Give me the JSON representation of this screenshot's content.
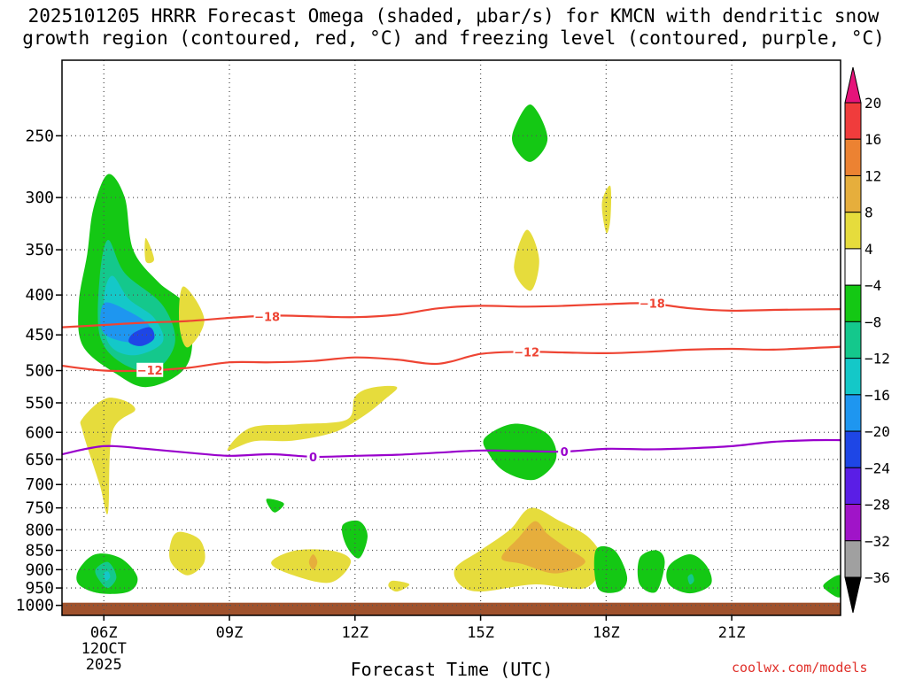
{
  "title_line1": "2025101205 HRRR Forecast Omega (shaded, μbar/s) for KMCN with dendritic snow",
  "title_line2": "growth region (contoured, red, °C) and freezing level (contoured, purple, °C)",
  "watermark": "coolwx.com/models",
  "colors": {
    "frame": "#000000",
    "grid": "#555555",
    "ground": "#a0522d",
    "dgz_line": "#ee4433",
    "freezing_line": "#9900cc"
  },
  "chart_data": {
    "type": "contour_shaded_time_height",
    "title": "2025101205 HRRR Forecast Omega (shaded, μbar/s) for KMCN with dendritic snow growth region (contoured, red, °C) and freezing level (contoured, purple, °C)",
    "xlabel": "Forecast Time (UTC)",
    "ylabel": "",
    "x_range_hours": [
      5.0,
      23.6
    ],
    "x_ticks": [
      {
        "hour": 6,
        "label": "06Z",
        "sublabel": [
          "12OCT",
          "2025"
        ]
      },
      {
        "hour": 9,
        "label": "09Z"
      },
      {
        "hour": 12,
        "label": "12Z"
      },
      {
        "hour": 15,
        "label": "15Z"
      },
      {
        "hour": 18,
        "label": "18Z"
      },
      {
        "hour": 21,
        "label": "21Z"
      }
    ],
    "y_axis": "pressure (mb), log scale, inverted",
    "y_range_mb": [
      1030,
      200
    ],
    "y_ticks": [
      250,
      300,
      350,
      400,
      450,
      500,
      550,
      600,
      650,
      700,
      750,
      800,
      850,
      900,
      950,
      1000
    ],
    "colorbar": {
      "units": "μbar/s",
      "labels": [
        "20",
        "16",
        "12",
        "8",
        "4",
        "−4",
        "−8",
        "−12",
        "−16",
        "−20",
        "−24",
        "−28",
        "−32",
        "−36"
      ],
      "bands": [
        {
          "range": [
            16,
            20
          ],
          "color": "#f03c3c"
        },
        {
          "range": [
            12,
            16
          ],
          "color": "#ec8232"
        },
        {
          "range": [
            8,
            12
          ],
          "color": "#e6ae3c"
        },
        {
          "range": [
            4,
            8
          ],
          "color": "#e6dc3c"
        },
        {
          "range": [
            -4,
            4
          ],
          "color": "#ffffff"
        },
        {
          "range": [
            -8,
            -4
          ],
          "color": "#14c814"
        },
        {
          "range": [
            -12,
            -8
          ],
          "color": "#14c88c"
        },
        {
          "range": [
            -16,
            -12
          ],
          "color": "#14c8c8"
        },
        {
          "range": [
            -20,
            -16
          ],
          "color": "#1e96f0"
        },
        {
          "range": [
            -24,
            -20
          ],
          "color": "#1e46e6"
        },
        {
          "range": [
            -28,
            -24
          ],
          "color": "#5a1ee6"
        },
        {
          "range": [
            -32,
            -28
          ],
          "color": "#a014c8"
        },
        {
          "range": [
            -36,
            -32
          ],
          "color": "#a0a0a0"
        }
      ],
      "over_color": "#e6147a",
      "under_color": "#000000"
    },
    "contours": [
      {
        "name": "dgz_-18C",
        "label": "−18",
        "color": "#ee4433",
        "points": [
          [
            5,
            440
          ],
          [
            6,
            437
          ],
          [
            7,
            434
          ],
          [
            8,
            432
          ],
          [
            9,
            428
          ],
          [
            10,
            425
          ],
          [
            11,
            426
          ],
          [
            12,
            427
          ],
          [
            13,
            424
          ],
          [
            14,
            416
          ],
          [
            15,
            413
          ],
          [
            16,
            414
          ],
          [
            17,
            413
          ],
          [
            18,
            411
          ],
          [
            19,
            410
          ],
          [
            20,
            416
          ],
          [
            21,
            419
          ],
          [
            22,
            418
          ],
          [
            23.6,
            417
          ]
        ],
        "label_at": [
          [
            9.9,
            426
          ],
          [
            19.1,
            410
          ]
        ]
      },
      {
        "name": "dgz_-12C",
        "label": "−12",
        "color": "#ee4433",
        "points": [
          [
            5,
            493
          ],
          [
            6,
            500
          ],
          [
            7,
            500
          ],
          [
            8,
            496
          ],
          [
            9,
            488
          ],
          [
            10,
            488
          ],
          [
            11,
            486
          ],
          [
            12,
            481
          ],
          [
            13,
            484
          ],
          [
            14,
            490
          ],
          [
            15,
            476
          ],
          [
            16,
            473
          ],
          [
            17,
            474
          ],
          [
            18,
            475
          ],
          [
            19,
            473
          ],
          [
            20,
            470
          ],
          [
            21,
            469
          ],
          [
            22,
            470
          ],
          [
            23.6,
            466
          ]
        ],
        "label_at": [
          [
            7.1,
            499
          ],
          [
            16.1,
            473
          ]
        ]
      },
      {
        "name": "freezing_0C",
        "label": "0",
        "color": "#9900cc",
        "points": [
          [
            5,
            640
          ],
          [
            6,
            625
          ],
          [
            7,
            630
          ],
          [
            8,
            637
          ],
          [
            9,
            643
          ],
          [
            10,
            640
          ],
          [
            11,
            645
          ],
          [
            12,
            643
          ],
          [
            13,
            641
          ],
          [
            14,
            637
          ],
          [
            15,
            633
          ],
          [
            16,
            634
          ],
          [
            17,
            635
          ],
          [
            18,
            630
          ],
          [
            19,
            631
          ],
          [
            20,
            629
          ],
          [
            21,
            625
          ],
          [
            22,
            617
          ],
          [
            23,
            614
          ],
          [
            23.6,
            614
          ]
        ],
        "label_at": [
          [
            11.0,
            645
          ],
          [
            17.0,
            635
          ]
        ]
      }
    ],
    "shaded_regions": [
      {
        "level": -6,
        "outline": [
          [
            5.75,
            310
          ],
          [
            6.1,
            280
          ],
          [
            6.5,
            300
          ],
          [
            6.7,
            350
          ],
          [
            7.3,
            385
          ],
          [
            8.0,
            415
          ],
          [
            8.1,
            470
          ],
          [
            7.8,
            505
          ],
          [
            7.0,
            525
          ],
          [
            6.3,
            505
          ],
          [
            5.5,
            465
          ],
          [
            5.4,
            410
          ],
          [
            5.6,
            355
          ]
        ]
      },
      {
        "level": -10,
        "outline": [
          [
            5.9,
            380
          ],
          [
            6.1,
            340
          ],
          [
            6.5,
            375
          ],
          [
            7.4,
            412
          ],
          [
            7.7,
            460
          ],
          [
            7.2,
            500
          ],
          [
            6.4,
            488
          ],
          [
            5.9,
            450
          ]
        ]
      },
      {
        "level": -14,
        "outline": [
          [
            6.0,
            405
          ],
          [
            6.2,
            378
          ],
          [
            6.6,
            405
          ],
          [
            7.2,
            428
          ],
          [
            7.4,
            460
          ],
          [
            6.7,
            478
          ],
          [
            6.1,
            460
          ]
        ]
      },
      {
        "level": -18,
        "outline": [
          [
            6.0,
            410
          ],
          [
            6.6,
            420
          ],
          [
            7.1,
            440
          ],
          [
            6.8,
            460
          ],
          [
            6.0,
            448
          ]
        ]
      },
      {
        "level": -22,
        "outline": [
          [
            6.7,
            448
          ],
          [
            7.1,
            440
          ],
          [
            7.2,
            455
          ],
          [
            6.9,
            465
          ],
          [
            6.6,
            460
          ]
        ]
      },
      {
        "level": 5,
        "outline": [
          [
            7.0,
            338
          ],
          [
            7.2,
            360
          ],
          [
            7.0,
            362
          ]
        ]
      },
      {
        "level": 5,
        "outline": [
          [
            7.9,
            390
          ],
          [
            8.4,
            430
          ],
          [
            8.0,
            467
          ],
          [
            7.8,
            435
          ]
        ]
      },
      {
        "level": 5,
        "outline": [
          [
            5.5,
            575
          ],
          [
            6.1,
            542
          ],
          [
            6.75,
            560
          ],
          [
            6.2,
            600
          ],
          [
            6.1,
            760
          ],
          [
            5.9,
            700
          ],
          [
            5.5,
            600
          ]
        ]
      },
      {
        "level": 5,
        "outline": [
          [
            8.95,
            633
          ],
          [
            9.5,
            592
          ],
          [
            10.6,
            586
          ],
          [
            11.8,
            578
          ],
          [
            12.0,
            540
          ],
          [
            12.4,
            526
          ],
          [
            13.0,
            525
          ],
          [
            12.7,
            545
          ],
          [
            12.2,
            572
          ],
          [
            11.5,
            600
          ],
          [
            10.5,
            615
          ],
          [
            9.6,
            616
          ]
        ]
      },
      {
        "level": 5,
        "outline": [
          [
            7.8,
            805
          ],
          [
            8.3,
            825
          ],
          [
            8.4,
            880
          ],
          [
            8.0,
            915
          ],
          [
            7.6,
            880
          ],
          [
            7.6,
            830
          ]
        ]
      },
      {
        "level": 5,
        "outline": [
          [
            10.0,
            880
          ],
          [
            10.6,
            850
          ],
          [
            11.5,
            852
          ],
          [
            11.9,
            880
          ],
          [
            11.4,
            935
          ],
          [
            10.4,
            910
          ]
        ]
      },
      {
        "level": 9,
        "outline": [
          [
            10.9,
            880
          ],
          [
            11.0,
            860
          ],
          [
            11.1,
            880
          ],
          [
            11.0,
            900
          ]
        ]
      },
      {
        "level": 5,
        "outline": [
          [
            12.9,
            930
          ],
          [
            13.3,
            940
          ],
          [
            13.0,
            960
          ],
          [
            12.8,
            945
          ]
        ]
      },
      {
        "level": 5,
        "outline": [
          [
            14.4,
            895
          ],
          [
            15.0,
            850
          ],
          [
            15.7,
            800
          ],
          [
            16.2,
            750
          ],
          [
            16.9,
            780
          ],
          [
            17.6,
            820
          ],
          [
            17.9,
            880
          ],
          [
            17.5,
            950
          ],
          [
            16.3,
            940
          ],
          [
            15.0,
            960
          ],
          [
            14.5,
            940
          ]
        ]
      },
      {
        "level": 9,
        "outline": [
          [
            15.5,
            870
          ],
          [
            15.9,
            820
          ],
          [
            16.3,
            780
          ],
          [
            16.6,
            810
          ],
          [
            17.0,
            840
          ],
          [
            17.5,
            880
          ],
          [
            16.8,
            910
          ],
          [
            16.0,
            885
          ]
        ]
      },
      {
        "level": 5,
        "outline": [
          [
            15.8,
            370
          ],
          [
            16.1,
            330
          ],
          [
            16.4,
            360
          ],
          [
            16.2,
            395
          ]
        ]
      },
      {
        "level": 5,
        "outline": [
          [
            17.9,
            305
          ],
          [
            18.1,
            290
          ],
          [
            18.1,
            320
          ],
          [
            18.0,
            333
          ]
        ]
      },
      {
        "level": -6,
        "outline": [
          [
            15.8,
            245
          ],
          [
            16.2,
            228
          ],
          [
            16.6,
            252
          ],
          [
            16.2,
            270
          ],
          [
            15.8,
            258
          ]
        ]
      },
      {
        "level": -6,
        "outline": [
          [
            15.1,
            610
          ],
          [
            15.8,
            585
          ],
          [
            16.6,
            603
          ],
          [
            16.8,
            650
          ],
          [
            16.3,
            690
          ],
          [
            15.6,
            675
          ],
          [
            15.2,
            640
          ]
        ]
      },
      {
        "level": -6,
        "outline": [
          [
            9.9,
            730
          ],
          [
            10.3,
            740
          ],
          [
            10.1,
            760
          ],
          [
            9.95,
            748
          ]
        ]
      },
      {
        "level": -6,
        "outline": [
          [
            11.7,
            790
          ],
          [
            12.1,
            780
          ],
          [
            12.3,
            815
          ],
          [
            12.1,
            870
          ],
          [
            11.8,
            840
          ]
        ]
      },
      {
        "level": -6,
        "outline": [
          [
            18.8,
            870
          ],
          [
            19.2,
            850
          ],
          [
            19.4,
            880
          ],
          [
            19.2,
            960
          ],
          [
            18.8,
            940
          ]
        ]
      },
      {
        "level": -6,
        "outline": [
          [
            17.75,
            850
          ],
          [
            18.2,
            850
          ],
          [
            18.5,
            920
          ],
          [
            18.3,
            960
          ],
          [
            17.8,
            950
          ]
        ]
      },
      {
        "level": -6,
        "outline": [
          [
            5.4,
            900
          ],
          [
            5.8,
            860
          ],
          [
            6.4,
            870
          ],
          [
            6.8,
            920
          ],
          [
            6.6,
            960
          ],
          [
            5.9,
            965
          ],
          [
            5.4,
            940
          ]
        ]
      },
      {
        "level": -10,
        "outline": [
          [
            5.8,
            900
          ],
          [
            6.1,
            880
          ],
          [
            6.3,
            920
          ],
          [
            6.1,
            950
          ],
          [
            5.9,
            930
          ]
        ]
      },
      {
        "level": -14,
        "outline": [
          [
            6.0,
            910
          ],
          [
            6.1,
            905
          ],
          [
            6.15,
            920
          ],
          [
            6.05,
            930
          ]
        ]
      },
      {
        "level": -6,
        "outline": [
          [
            19.5,
            890
          ],
          [
            20.0,
            860
          ],
          [
            20.4,
            890
          ],
          [
            20.5,
            940
          ],
          [
            20.0,
            965
          ],
          [
            19.5,
            940
          ]
        ]
      },
      {
        "level": -10,
        "outline": [
          [
            19.95,
            920
          ],
          [
            20.05,
            912
          ],
          [
            20.1,
            930
          ],
          [
            20.0,
            940
          ]
        ]
      },
      {
        "level": -6,
        "outline": [
          [
            23.2,
            940
          ],
          [
            23.6,
            915
          ],
          [
            23.6,
            975
          ],
          [
            23.3,
            960
          ]
        ]
      }
    ],
    "ground_below_mb": 1000
  }
}
